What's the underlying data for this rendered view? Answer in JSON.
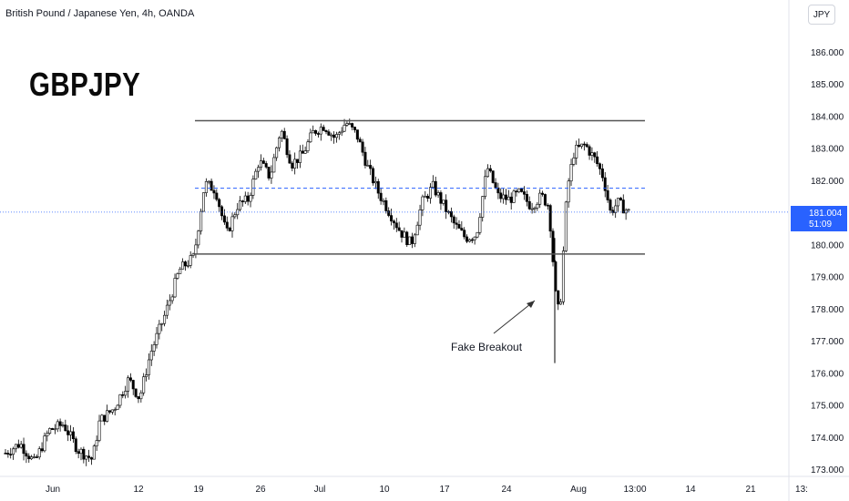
{
  "header": {
    "title": "British Pound / Japanese Yen, 4h, OANDA"
  },
  "currency_button": "JPY",
  "current_price": {
    "value": "181.004",
    "countdown": "51:09"
  },
  "chart_data": {
    "type": "candlestick",
    "title": "GBPJPY",
    "ylim": [
      173.0,
      186.4
    ],
    "y_ticks": [
      "173.000",
      "174.000",
      "175.000",
      "176.000",
      "177.000",
      "178.000",
      "179.000",
      "180.000",
      "181.000",
      "182.000",
      "183.000",
      "184.000",
      "185.000",
      "186.000"
    ],
    "x_ticks": [
      "Jun",
      "12",
      "19",
      "26",
      "Jul",
      "10",
      "17",
      "24",
      "Aug",
      "13:00",
      "14",
      "21",
      "13:"
    ],
    "levels": {
      "resistance": 183.85,
      "midline": 181.75,
      "support": 179.7,
      "current": 181.004
    },
    "annotation": "Fake Breakout",
    "price_path": [
      [
        0,
        173.5
      ],
      [
        0.04,
        173.8
      ],
      [
        0.08,
        173.2
      ],
      [
        0.12,
        174.2
      ],
      [
        0.16,
        174.4
      ],
      [
        0.2,
        173.6
      ],
      [
        0.24,
        173.3
      ],
      [
        0.26,
        174.5
      ],
      [
        0.3,
        174.9
      ],
      [
        0.34,
        175.8
      ],
      [
        0.37,
        175.2
      ],
      [
        0.4,
        176.6
      ],
      [
        0.44,
        177.8
      ],
      [
        0.48,
        179.2
      ],
      [
        0.52,
        179.6
      ],
      [
        0.55,
        181.9
      ],
      [
        0.58,
        181.7
      ],
      [
        0.61,
        180.3
      ],
      [
        0.64,
        181.2
      ],
      [
        0.67,
        181.4
      ],
      [
        0.7,
        182.6
      ],
      [
        0.73,
        182.1
      ],
      [
        0.76,
        183.6
      ],
      [
        0.79,
        182.5
      ],
      [
        0.82,
        182.8
      ],
      [
        0.85,
        183.5
      ],
      [
        0.88,
        183.7
      ],
      [
        0.91,
        183.3
      ],
      [
        0.94,
        183.8
      ],
      [
        0.97,
        183.4
      ],
      [
        1.0,
        182.4
      ],
      [
        1.03,
        181.6
      ],
      [
        1.06,
        181.0
      ],
      [
        1.09,
        180.4
      ],
      [
        1.12,
        180.0
      ],
      [
        1.15,
        181.3
      ],
      [
        1.18,
        181.8
      ],
      [
        1.21,
        181.2
      ],
      [
        1.24,
        180.6
      ],
      [
        1.27,
        180.2
      ],
      [
        1.3,
        180.3
      ],
      [
        1.33,
        182.4
      ],
      [
        1.36,
        181.5
      ],
      [
        1.39,
        181.4
      ],
      [
        1.42,
        181.6
      ],
      [
        1.45,
        181.2
      ],
      [
        1.48,
        181.5
      ],
      [
        1.5,
        181.2
      ],
      [
        1.52,
        178.2
      ],
      [
        1.53,
        177.8
      ],
      [
        1.55,
        181.7
      ],
      [
        1.57,
        182.9
      ],
      [
        1.6,
        183.1
      ],
      [
        1.63,
        182.6
      ],
      [
        1.65,
        182.1
      ],
      [
        1.67,
        181.0
      ],
      [
        1.69,
        181.3
      ],
      [
        1.72,
        181.0
      ]
    ]
  }
}
